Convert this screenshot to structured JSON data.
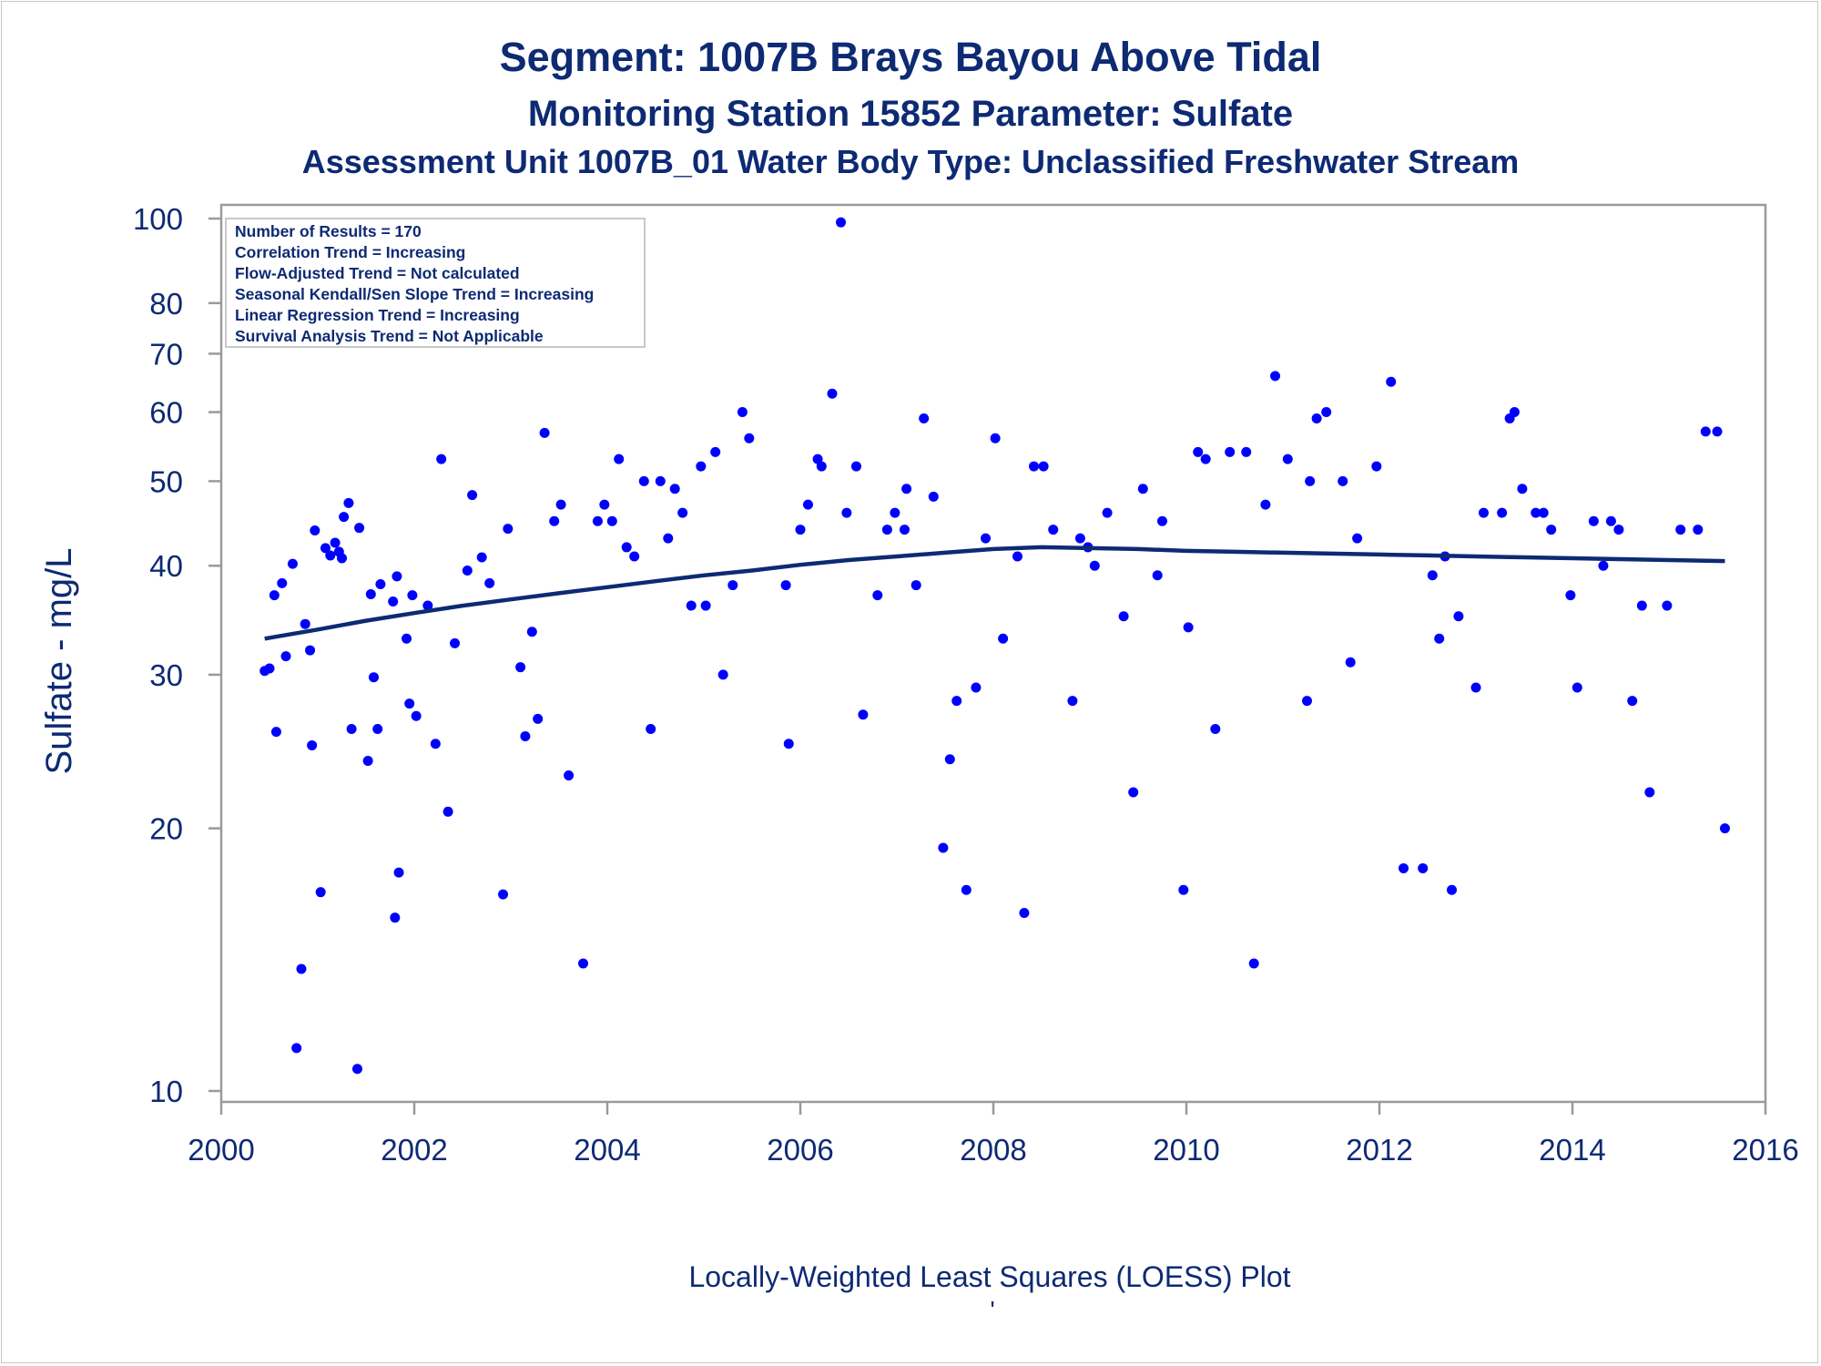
{
  "chart_data": {
    "type": "scatter",
    "title": "Segment: 1007B  Brays Bayou Above Tidal",
    "subtitle": "Monitoring Station 15852 Parameter: Sulfate",
    "subtitle2": "Assessment Unit 1007B_01   Water Body Type: Unclassified Freshwater Stream",
    "xlabel": "",
    "ylabel": "Sulfate - mg/L",
    "footnote": "Locally-Weighted Least Squares (LOESS) Plot",
    "footnote2": "'",
    "y_scale": "log",
    "xlim": [
      2000,
      2016
    ],
    "ylim": [
      10,
      100
    ],
    "x_ticks": [
      2000,
      2002,
      2004,
      2006,
      2008,
      2010,
      2012,
      2014,
      2016
    ],
    "y_ticks": [
      10,
      20,
      30,
      40,
      50,
      60,
      70,
      80,
      100
    ],
    "grid": false,
    "stats_box": {
      "placement": "top-left",
      "lines": [
        "Number of Results = 170",
        "Correlation Trend = Increasing",
        "Flow-Adjusted Trend = Not calculated",
        "Seasonal Kendall/Sen Slope Trend = Increasing",
        "Linear Regression Trend = Increasing",
        "Survival Analysis Trend = Not Applicable"
      ]
    },
    "colors": {
      "points": "#0000ff",
      "loess": "#0d2a73",
      "text": "#0d2a73",
      "axis": "#9a9a9a"
    },
    "series": [
      {
        "type": "scatter",
        "points": [
          [
            2000.45,
            30.3
          ],
          [
            2000.5,
            30.5
          ],
          [
            2000.55,
            37
          ],
          [
            2000.57,
            25.8
          ],
          [
            2000.63,
            38.2
          ],
          [
            2000.67,
            31.5
          ],
          [
            2000.74,
            40.2
          ],
          [
            2000.78,
            11.2
          ],
          [
            2000.83,
            13.8
          ],
          [
            2000.87,
            34.3
          ],
          [
            2000.92,
            32
          ],
          [
            2000.94,
            24.9
          ],
          [
            2000.97,
            43.9
          ],
          [
            2001.03,
            16.9
          ],
          [
            2001.08,
            41.9
          ],
          [
            2001.13,
            41.1
          ],
          [
            2001.18,
            42.5
          ],
          [
            2001.22,
            41.5
          ],
          [
            2001.25,
            40.8
          ],
          [
            2001.27,
            45.5
          ],
          [
            2001.32,
            47.2
          ],
          [
            2001.35,
            26
          ],
          [
            2001.41,
            10.6
          ],
          [
            2001.43,
            44.2
          ],
          [
            2001.52,
            23.9
          ],
          [
            2001.55,
            37.1
          ],
          [
            2001.58,
            29.8
          ],
          [
            2001.62,
            26
          ],
          [
            2001.65,
            38.1
          ],
          [
            2001.78,
            36.4
          ],
          [
            2001.8,
            15.8
          ],
          [
            2001.82,
            38.9
          ],
          [
            2001.84,
            17.8
          ],
          [
            2001.92,
            33
          ],
          [
            2001.95,
            27.8
          ],
          [
            2001.98,
            37
          ],
          [
            2002.02,
            26.9
          ],
          [
            2002.14,
            36
          ],
          [
            2002.22,
            25
          ],
          [
            2002.28,
            53
          ],
          [
            2002.35,
            20.9
          ],
          [
            2002.42,
            32.6
          ],
          [
            2002.55,
            39.5
          ],
          [
            2002.6,
            48.2
          ],
          [
            2002.7,
            40.9
          ],
          [
            2002.78,
            38.2
          ],
          [
            2002.92,
            16.8
          ],
          [
            2002.97,
            44.1
          ],
          [
            2003.1,
            30.6
          ],
          [
            2003.15,
            25.5
          ],
          [
            2003.22,
            33.6
          ],
          [
            2003.28,
            26.7
          ],
          [
            2003.35,
            56.8
          ],
          [
            2003.45,
            45
          ],
          [
            2003.52,
            47
          ],
          [
            2003.6,
            23
          ],
          [
            2003.75,
            14
          ],
          [
            2003.9,
            45
          ],
          [
            2003.97,
            47
          ],
          [
            2004.05,
            45
          ],
          [
            2004.12,
            53
          ],
          [
            2004.2,
            42
          ],
          [
            2004.28,
            41
          ],
          [
            2004.38,
            50
          ],
          [
            2004.45,
            26
          ],
          [
            2004.55,
            50
          ],
          [
            2004.63,
            43
          ],
          [
            2004.7,
            49
          ],
          [
            2004.78,
            46
          ],
          [
            2004.87,
            36
          ],
          [
            2004.97,
            52
          ],
          [
            2005.02,
            36
          ],
          [
            2005.12,
            54
          ],
          [
            2005.2,
            30
          ],
          [
            2005.3,
            38
          ],
          [
            2005.4,
            60
          ],
          [
            2005.47,
            56
          ],
          [
            2005.85,
            38
          ],
          [
            2005.88,
            25
          ],
          [
            2006.0,
            44
          ],
          [
            2006.08,
            47
          ],
          [
            2006.18,
            53
          ],
          [
            2006.22,
            52
          ],
          [
            2006.33,
            63
          ],
          [
            2006.42,
            99
          ],
          [
            2006.48,
            46
          ],
          [
            2006.58,
            52
          ],
          [
            2006.65,
            27
          ],
          [
            2006.8,
            37
          ],
          [
            2006.9,
            44
          ],
          [
            2006.98,
            46
          ],
          [
            2007.08,
            44
          ],
          [
            2007.1,
            49
          ],
          [
            2007.2,
            38
          ],
          [
            2007.28,
            59
          ],
          [
            2007.38,
            48
          ],
          [
            2007.48,
            19
          ],
          [
            2007.55,
            24
          ],
          [
            2007.62,
            28
          ],
          [
            2007.72,
            17
          ],
          [
            2007.82,
            29
          ],
          [
            2007.92,
            43
          ],
          [
            2008.02,
            56
          ],
          [
            2008.1,
            33
          ],
          [
            2008.25,
            41
          ],
          [
            2008.32,
            16
          ],
          [
            2008.42,
            52
          ],
          [
            2008.52,
            52
          ],
          [
            2008.62,
            44
          ],
          [
            2008.82,
            28
          ],
          [
            2008.9,
            43
          ],
          [
            2008.98,
            42
          ],
          [
            2009.05,
            40
          ],
          [
            2009.18,
            46
          ],
          [
            2009.35,
            35
          ],
          [
            2009.45,
            22
          ],
          [
            2009.55,
            49
          ],
          [
            2009.7,
            39
          ],
          [
            2009.75,
            45
          ],
          [
            2009.97,
            17
          ],
          [
            2010.02,
            34
          ],
          [
            2010.12,
            54
          ],
          [
            2010.2,
            53
          ],
          [
            2010.3,
            26
          ],
          [
            2010.45,
            54
          ],
          [
            2010.62,
            54
          ],
          [
            2010.7,
            14
          ],
          [
            2010.82,
            47
          ],
          [
            2010.92,
            66
          ],
          [
            2011.05,
            53
          ],
          [
            2011.25,
            28
          ],
          [
            2011.28,
            50
          ],
          [
            2011.35,
            59
          ],
          [
            2011.45,
            60
          ],
          [
            2011.62,
            50
          ],
          [
            2011.7,
            31
          ],
          [
            2011.77,
            43
          ],
          [
            2011.97,
            52
          ],
          [
            2012.12,
            65
          ],
          [
            2012.25,
            18
          ],
          [
            2012.45,
            18
          ],
          [
            2012.55,
            39
          ],
          [
            2012.62,
            33
          ],
          [
            2012.68,
            41
          ],
          [
            2012.75,
            17
          ],
          [
            2012.82,
            35
          ],
          [
            2013.0,
            29
          ],
          [
            2013.08,
            46
          ],
          [
            2013.27,
            46
          ],
          [
            2013.35,
            59
          ],
          [
            2013.4,
            60
          ],
          [
            2013.48,
            49
          ],
          [
            2013.62,
            46
          ],
          [
            2013.7,
            46
          ],
          [
            2013.78,
            44
          ],
          [
            2013.98,
            37
          ],
          [
            2014.05,
            29
          ],
          [
            2014.22,
            45
          ],
          [
            2014.32,
            40
          ],
          [
            2014.4,
            45
          ],
          [
            2014.48,
            44
          ],
          [
            2014.62,
            28
          ],
          [
            2014.72,
            36
          ],
          [
            2014.8,
            22
          ],
          [
            2014.98,
            36
          ],
          [
            2015.12,
            44
          ],
          [
            2015.3,
            44
          ],
          [
            2015.38,
            57
          ],
          [
            2015.5,
            57
          ],
          [
            2015.58,
            20
          ]
        ]
      },
      {
        "type": "line",
        "name": "LOESS",
        "points": [
          [
            2000.45,
            33
          ],
          [
            2001.0,
            33.8
          ],
          [
            2001.5,
            34.6
          ],
          [
            2002.0,
            35.3
          ],
          [
            2002.5,
            36
          ],
          [
            2003.0,
            36.6
          ],
          [
            2003.5,
            37.2
          ],
          [
            2004.0,
            37.8
          ],
          [
            2004.5,
            38.4
          ],
          [
            2005.0,
            39.0
          ],
          [
            2005.5,
            39.5
          ],
          [
            2006.0,
            40.1
          ],
          [
            2006.5,
            40.6
          ],
          [
            2007.0,
            41.0
          ],
          [
            2007.5,
            41.4
          ],
          [
            2008.0,
            41.8
          ],
          [
            2008.5,
            42.0
          ],
          [
            2009.0,
            41.9
          ],
          [
            2009.5,
            41.8
          ],
          [
            2010.0,
            41.6
          ],
          [
            2010.5,
            41.5
          ],
          [
            2011.0,
            41.4
          ],
          [
            2011.5,
            41.3
          ],
          [
            2012.0,
            41.2
          ],
          [
            2012.5,
            41.1
          ],
          [
            2013.0,
            41.0
          ],
          [
            2013.5,
            40.9
          ],
          [
            2014.0,
            40.8
          ],
          [
            2014.5,
            40.7
          ],
          [
            2015.0,
            40.6
          ],
          [
            2015.58,
            40.5
          ]
        ]
      }
    ]
  }
}
